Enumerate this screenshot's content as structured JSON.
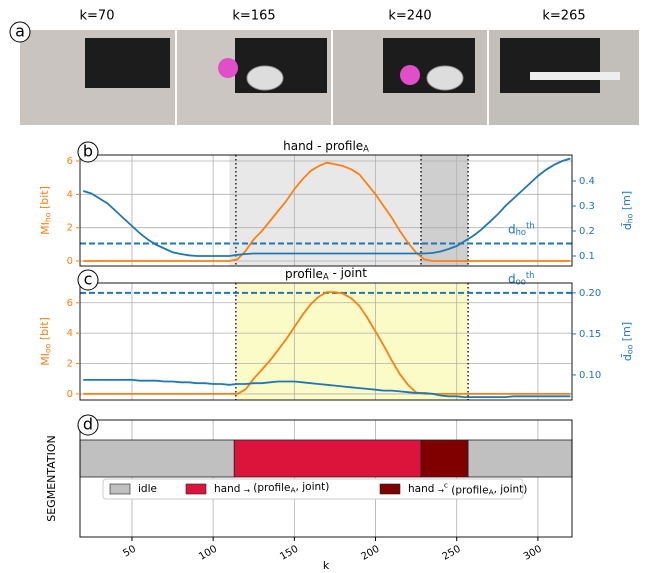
{
  "photos": {
    "label": "a",
    "captions": [
      "k=70",
      "k=165",
      "k=240",
      "k=265"
    ]
  },
  "chart_data": [
    {
      "type": "line",
      "panel": "b",
      "title": "hand - profile_{A}",
      "xlim": [
        18,
        321
      ],
      "xticks": [
        50,
        100,
        150,
        200,
        250,
        300
      ],
      "ylim": [
        -0.3,
        6.36
      ],
      "yticks": [
        0,
        2,
        4,
        6
      ],
      "ylabel": "MI_{ho} [bit]",
      "y2lim": [
        0.06,
        0.504
      ],
      "y2ticks": [
        0.1,
        0.2,
        0.3,
        0.4
      ],
      "y2label": "d̄_{ho} [m]",
      "grid": true,
      "regions": [
        {
          "start": 110,
          "end": 228,
          "color": "#e8e8e8"
        },
        {
          "start": 228,
          "end": 257,
          "color": "#cfcfcf"
        }
      ],
      "vlines": [
        114,
        228,
        257
      ],
      "threshold": {
        "value": 0.15,
        "label": "d_{ho}^{th}",
        "axis": "y2",
        "color": "#1f77b4"
      },
      "x": [
        20,
        25,
        30,
        35,
        40,
        45,
        50,
        55,
        60,
        65,
        70,
        75,
        80,
        85,
        90,
        95,
        100,
        105,
        110,
        115,
        120,
        125,
        130,
        135,
        140,
        145,
        150,
        155,
        160,
        165,
        170,
        175,
        180,
        185,
        190,
        195,
        200,
        205,
        210,
        215,
        220,
        225,
        230,
        235,
        240,
        245,
        250,
        255,
        260,
        265,
        270,
        275,
        280,
        285,
        290,
        295,
        300,
        305,
        310,
        315,
        320
      ],
      "series": [
        {
          "color": "#ff7f0e",
          "axis": "y",
          "values": [
            0,
            0,
            0,
            0,
            0,
            0,
            0,
            0,
            0,
            0,
            0,
            0,
            0,
            0,
            0,
            0,
            0,
            0,
            0,
            0.1,
            0.6,
            1.3,
            1.8,
            2.4,
            3.0,
            3.6,
            4.3,
            4.9,
            5.4,
            5.7,
            5.9,
            5.8,
            5.7,
            5.5,
            5.2,
            4.6,
            4.0,
            3.3,
            2.6,
            1.8,
            1.1,
            0.5,
            0.1,
            0,
            0,
            0,
            0,
            0,
            0,
            0,
            0,
            0,
            0,
            0,
            0,
            0,
            0,
            0,
            0,
            0,
            0
          ]
        },
        {
          "color": "#1f77b4",
          "axis": "y2",
          "values": [
            0.36,
            0.35,
            0.33,
            0.31,
            0.28,
            0.25,
            0.22,
            0.19,
            0.165,
            0.145,
            0.13,
            0.115,
            0.108,
            0.103,
            0.1,
            0.1,
            0.1,
            0.1,
            0.1,
            0.105,
            0.108,
            0.11,
            0.11,
            0.11,
            0.11,
            0.11,
            0.11,
            0.11,
            0.11,
            0.11,
            0.11,
            0.11,
            0.11,
            0.11,
            0.11,
            0.11,
            0.11,
            0.11,
            0.11,
            0.11,
            0.11,
            0.11,
            0.11,
            0.112,
            0.118,
            0.128,
            0.14,
            0.16,
            0.18,
            0.205,
            0.235,
            0.265,
            0.3,
            0.33,
            0.36,
            0.39,
            0.42,
            0.445,
            0.465,
            0.48,
            0.49
          ]
        }
      ]
    },
    {
      "type": "line",
      "panel": "c",
      "title": "profile_{A} - joint",
      "xlim": [
        18,
        321
      ],
      "xticks": [
        50,
        100,
        150,
        200,
        250,
        300
      ],
      "ylim": [
        -0.4,
        7.3
      ],
      "yticks": [
        0,
        2,
        4,
        6
      ],
      "ylabel": "MI_{oo} [bit]",
      "y2lim": [
        0.0695,
        0.212
      ],
      "y2ticks": [
        {
          "value": 0.1,
          "label": "0.10"
        },
        {
          "value": 0.15,
          "label": "0.15"
        },
        {
          "value": 0.2,
          "label": "0.20"
        }
      ],
      "y2label": "d̄_{oo} [m]",
      "grid": true,
      "regions": [
        {
          "start": 114,
          "end": 257,
          "color": "#fbfbc8"
        }
      ],
      "vlines": [
        114,
        257
      ],
      "threshold": {
        "value": 0.2,
        "label": "d_{oo}^{th}",
        "axis": "y2",
        "color": "#1f77b4"
      },
      "x": [
        20,
        25,
        30,
        35,
        40,
        45,
        50,
        55,
        60,
        65,
        70,
        75,
        80,
        85,
        90,
        95,
        100,
        105,
        110,
        115,
        120,
        125,
        130,
        135,
        140,
        145,
        150,
        155,
        160,
        165,
        170,
        175,
        180,
        185,
        190,
        195,
        200,
        205,
        210,
        215,
        220,
        225,
        230,
        235,
        240,
        245,
        250,
        255,
        260,
        265,
        270,
        275,
        280,
        285,
        290,
        295,
        300,
        305,
        310,
        315,
        320
      ],
      "series": [
        {
          "color": "#ff7f0e",
          "axis": "y",
          "values": [
            0,
            0,
            0,
            0,
            0,
            0,
            0,
            0,
            0,
            0,
            0,
            0,
            0,
            0,
            0,
            0,
            0,
            0,
            0,
            0,
            0.3,
            1.0,
            1.6,
            2.2,
            2.9,
            3.6,
            4.4,
            5.2,
            5.9,
            6.4,
            6.7,
            6.7,
            6.6,
            6.3,
            5.8,
            5.0,
            4.1,
            3.2,
            2.2,
            1.3,
            0.6,
            0.1,
            0,
            0,
            0,
            0,
            0,
            0,
            0,
            0,
            0,
            0,
            0,
            0,
            0,
            0,
            0,
            0,
            0,
            0,
            0
          ]
        },
        {
          "color": "#1f77b4",
          "axis": "y2",
          "values": [
            0.094,
            0.094,
            0.094,
            0.094,
            0.094,
            0.094,
            0.094,
            0.093,
            0.093,
            0.093,
            0.092,
            0.092,
            0.091,
            0.091,
            0.09,
            0.09,
            0.089,
            0.089,
            0.088,
            0.089,
            0.089,
            0.09,
            0.09,
            0.091,
            0.092,
            0.092,
            0.092,
            0.091,
            0.09,
            0.089,
            0.088,
            0.087,
            0.086,
            0.085,
            0.084,
            0.083,
            0.082,
            0.081,
            0.081,
            0.08,
            0.079,
            0.078,
            0.078,
            0.077,
            0.075,
            0.074,
            0.074,
            0.073,
            0.073,
            0.073,
            0.073,
            0.073,
            0.073,
            0.074,
            0.074,
            0.074,
            0.074,
            0.074,
            0.074,
            0.074,
            0.074
          ]
        }
      ]
    },
    {
      "type": "segmentation",
      "panel": "d",
      "ylabel": "SEGMENTATION",
      "xlabel": "k",
      "xlim": [
        18,
        321
      ],
      "xticks": [
        50,
        100,
        150,
        200,
        250,
        300
      ],
      "grid": true,
      "classes": [
        {
          "name": "idle",
          "color": "#c0c0c0"
        },
        {
          "name": "hand _{→} (profile_{A}, joint)",
          "color": "#dc143c"
        },
        {
          "name": "hand _{→}^{c} (profile_{A}, joint)",
          "color": "#800000"
        }
      ],
      "segments": [
        {
          "start": 18,
          "end": 113,
          "class": 0
        },
        {
          "start": 113,
          "end": 228,
          "class": 1
        },
        {
          "start": 228,
          "end": 257,
          "class": 2
        },
        {
          "start": 257,
          "end": 321,
          "class": 0
        }
      ]
    }
  ]
}
